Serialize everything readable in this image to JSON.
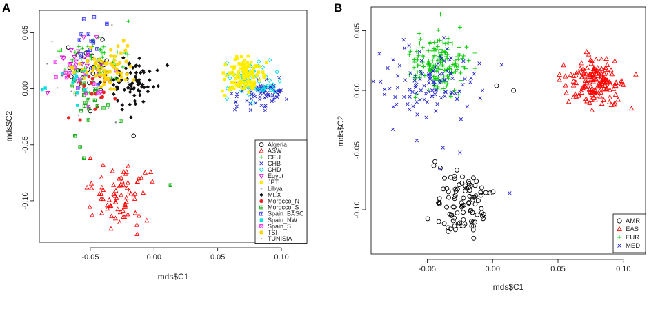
{
  "chart_data": [
    {
      "panel": "A",
      "type": "scatter",
      "xlabel": "mds$C1",
      "ylabel": "mds$C2",
      "xlim": [
        -0.09,
        0.12
      ],
      "ylim": [
        -0.137,
        0.07
      ],
      "xticks": [
        "-0.05",
        "0.00",
        "0.05",
        "0.10"
      ],
      "xtick_values": [
        -0.05,
        0.0,
        0.05,
        0.1
      ],
      "yticks": [
        "0.05",
        "0.00",
        "-0.05",
        "-0.10"
      ],
      "ytick_values": [
        0.05,
        0.0,
        -0.05,
        -0.1
      ],
      "legend_position": "bottom-right",
      "series": [
        {
          "name": "Algeria",
          "symbol": "circle",
          "color": "#000000",
          "n": 22,
          "center": [
            -0.05,
            0.02
          ],
          "spread": [
            0.01,
            0.012
          ],
          "extra": [
            [
              -0.05,
              -0.02
            ],
            [
              -0.016,
              -0.042
            ],
            [
              -0.06,
              0.03
            ]
          ]
        },
        {
          "name": "ASW",
          "symbol": "triangle",
          "color": "#ff0000",
          "n": 75,
          "center": [
            -0.027,
            -0.098
          ],
          "spread": [
            0.013,
            0.012
          ],
          "extra": [
            [
              -0.05,
              -0.062
            ],
            [
              -0.04,
              -0.068
            ]
          ]
        },
        {
          "name": "CEU",
          "symbol": "plus",
          "color": "#00cc00",
          "n": 55,
          "center": [
            -0.045,
            0.022
          ],
          "spread": [
            0.012,
            0.011
          ],
          "extra": [
            [
              -0.02,
              0.06
            ]
          ]
        },
        {
          "name": "CHB",
          "symbol": "x",
          "color": "#2222cc",
          "n": 75,
          "center": [
            0.083,
            -0.005
          ],
          "spread": [
            0.01,
            0.008
          ],
          "extra": []
        },
        {
          "name": "CHD",
          "symbol": "diamond",
          "color": "#00dddd",
          "n": 60,
          "center": [
            0.076,
            0.008
          ],
          "spread": [
            0.01,
            0.008
          ],
          "extra": []
        },
        {
          "name": "Egypt",
          "symbol": "triangle-down",
          "color": "#dd00dd",
          "n": 18,
          "center": [
            -0.055,
            0.02
          ],
          "spread": [
            0.012,
            0.012
          ],
          "extra": [
            [
              -0.072,
              0.028
            ],
            [
              -0.045,
              0.046
            ]
          ]
        },
        {
          "name": "JPT",
          "symbol": "square-filled",
          "color": "#ffee00",
          "n": 110,
          "center": [
            0.072,
            0.012
          ],
          "spread": [
            0.008,
            0.008
          ],
          "extra": []
        },
        {
          "name": "Libya",
          "symbol": "point",
          "color": "#aaaaaa",
          "n": 14,
          "center": [
            -0.047,
            0.012
          ],
          "spread": [
            0.012,
            0.014
          ],
          "extra": [
            [
              -0.03,
              -0.03
            ],
            [
              -0.033,
              0.057
            ]
          ]
        },
        {
          "name": "MEX",
          "symbol": "diamond-filled",
          "color": "#111111",
          "n": 75,
          "center": [
            -0.018,
            0.006
          ],
          "spread": [
            0.011,
            0.011
          ],
          "extra": []
        },
        {
          "name": "Morocco_N",
          "symbol": "circle-filled",
          "color": "#ee2222",
          "n": 20,
          "center": [
            -0.048,
            0.004
          ],
          "spread": [
            0.012,
            0.01
          ],
          "extra": [
            [
              -0.067,
              -0.026
            ],
            [
              -0.058,
              -0.028
            ]
          ]
        },
        {
          "name": "Morocco_S",
          "symbol": "square-cross",
          "color": "#00aa00",
          "n": 22,
          "center": [
            -0.048,
            -0.01
          ],
          "spread": [
            0.01,
            0.014
          ],
          "extra": [
            [
              -0.062,
              -0.042
            ],
            [
              -0.055,
              -0.062
            ],
            [
              0.013,
              -0.086
            ],
            [
              -0.058,
              -0.052
            ]
          ]
        },
        {
          "name": "Spain_BASC",
          "symbol": "square-hatched",
          "color": "#3333ee",
          "n": 14,
          "center": [
            -0.052,
            0.036
          ],
          "spread": [
            0.008,
            0.012
          ],
          "extra": [
            [
              -0.047,
              0.064
            ],
            [
              -0.037,
              0.058
            ]
          ]
        },
        {
          "name": "Spain_NW",
          "symbol": "square-filled",
          "color": "#11dddd",
          "n": 16,
          "center": [
            -0.06,
            0.008
          ],
          "spread": [
            0.012,
            0.01
          ],
          "extra": []
        },
        {
          "name": "Spain_S",
          "symbol": "square-x",
          "color": "#ee22ee",
          "n": 16,
          "center": [
            -0.056,
            0.008
          ],
          "spread": [
            0.012,
            0.01
          ],
          "extra": []
        },
        {
          "name": "TSI",
          "symbol": "star",
          "color": "#ffd600",
          "n": 65,
          "center": [
            -0.038,
            0.02
          ],
          "spread": [
            0.011,
            0.01
          ],
          "extra": []
        },
        {
          "name": "TUNISIA",
          "symbol": "dot",
          "color": "#888888",
          "n": 16,
          "center": [
            -0.058,
            0.012
          ],
          "spread": [
            0.014,
            0.012
          ],
          "extra": [
            [
              -0.08,
              0.042
            ],
            [
              -0.03,
              -0.03
            ]
          ]
        }
      ]
    },
    {
      "panel": "B",
      "type": "scatter",
      "xlabel": "mds$C1",
      "ylabel": "mds$C2",
      "xlim": [
        -0.093,
        0.117
      ],
      "ylim": [
        -0.137,
        0.07
      ],
      "xticks": [
        "-0.05",
        "0.00",
        "0.05",
        "0.10"
      ],
      "xtick_values": [
        -0.05,
        0.0,
        0.05,
        0.1
      ],
      "yticks": [
        "0.05",
        "0.00",
        "-0.05",
        "-0.10"
      ],
      "ytick_values": [
        0.05,
        0.0,
        -0.05,
        -0.1
      ],
      "legend_position": "bottom-right",
      "series": [
        {
          "name": "AMR",
          "symbol": "circle",
          "color": "#000000",
          "n": 95,
          "center": [
            -0.022,
            -0.097
          ],
          "spread": [
            0.01,
            0.013
          ],
          "extra": [
            [
              -0.045,
              -0.063
            ],
            [
              0.016,
              0.0
            ],
            [
              0.003,
              0.004
            ],
            [
              -0.04,
              -0.065
            ]
          ]
        },
        {
          "name": "EAS",
          "symbol": "triangle",
          "color": "#ff0000",
          "n": 170,
          "center": [
            0.078,
            0.006
          ],
          "spread": [
            0.011,
            0.01
          ],
          "extra": []
        },
        {
          "name": "EUR",
          "symbol": "plus",
          "color": "#00cc00",
          "n": 170,
          "center": [
            -0.042,
            0.022
          ],
          "spread": [
            0.011,
            0.011
          ],
          "extra": [
            [
              -0.04,
              0.064
            ],
            [
              -0.025,
              0.053
            ]
          ]
        },
        {
          "name": "MED",
          "symbol": "x",
          "color": "#2222cc",
          "n": 110,
          "center": [
            -0.045,
            0.005
          ],
          "spread": [
            0.018,
            0.014
          ],
          "extra": [
            [
              0.013,
              -0.086
            ],
            [
              -0.058,
              -0.042
            ],
            [
              -0.038,
              -0.048
            ],
            [
              -0.025,
              -0.052
            ],
            [
              -0.04,
              -0.066
            ]
          ]
        }
      ]
    }
  ]
}
